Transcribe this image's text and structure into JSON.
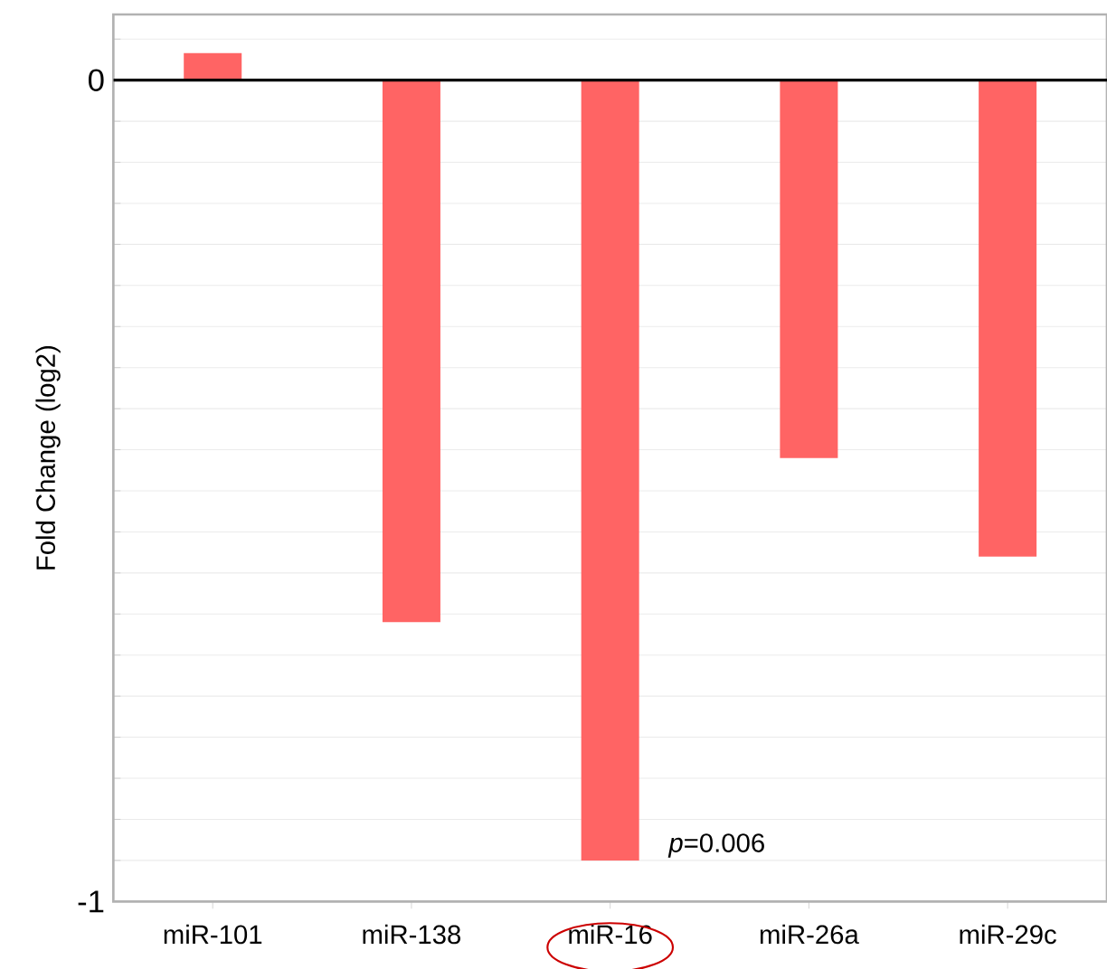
{
  "chart_data": {
    "type": "bar",
    "ylabel": "Fold Change (log2)",
    "categories": [
      "miR-101",
      "miR-138",
      "miR-16",
      "miR-26a",
      "miR-29c"
    ],
    "values": [
      0.033,
      -0.66,
      -0.95,
      -0.46,
      -0.58
    ],
    "color": "#ff6464",
    "ylim": [
      -1,
      0.08
    ],
    "yticks": [
      {
        "value": -1,
        "label": "-1"
      },
      {
        "value": -0.95,
        "label": null
      },
      {
        "value": -0.9,
        "label": null
      },
      {
        "value": -0.85,
        "label": null
      },
      {
        "value": -0.8,
        "label": null
      },
      {
        "value": -0.75,
        "label": null
      },
      {
        "value": -0.7,
        "label": null
      },
      {
        "value": -0.65,
        "label": null
      },
      {
        "value": -0.6,
        "label": null
      },
      {
        "value": -0.55,
        "label": null
      },
      {
        "value": -0.5,
        "label": null
      },
      {
        "value": -0.45,
        "label": null
      },
      {
        "value": -0.4,
        "label": null
      },
      {
        "value": -0.35,
        "label": null
      },
      {
        "value": -0.3,
        "label": null
      },
      {
        "value": -0.25,
        "label": null
      },
      {
        "value": -0.2,
        "label": null
      },
      {
        "value": -0.15,
        "label": null
      },
      {
        "value": -0.1,
        "label": null
      },
      {
        "value": -0.05,
        "label": null
      },
      {
        "value": 0,
        "label": "0"
      },
      {
        "value": 0.05,
        "label": null
      }
    ],
    "grid": "y",
    "ref_lines": [
      {
        "axis": "y",
        "value": 0,
        "color": "#000000"
      }
    ],
    "annotations": [
      {
        "text": "*p*=0.006",
        "x": "miR-16",
        "y": -0.95
      }
    ]
  }
}
